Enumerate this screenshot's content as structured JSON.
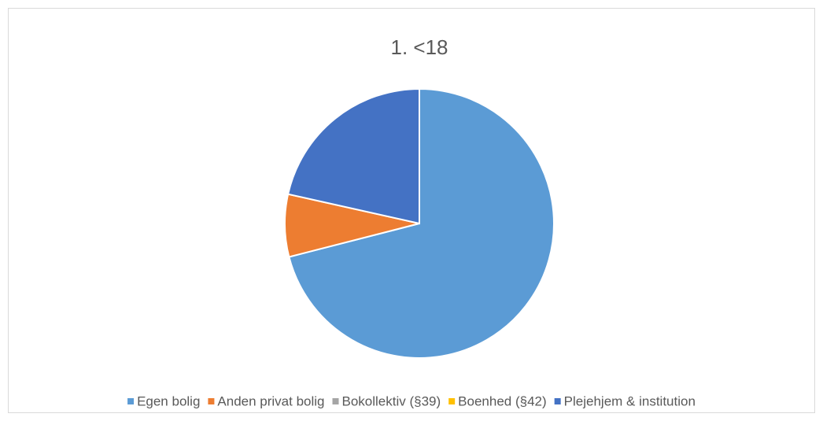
{
  "chart_data": {
    "type": "pie",
    "title": "1. <18",
    "categories": [
      "Egen bolig",
      "Anden privat bolig",
      "Bokollektiv (§39)",
      "Boenhed (§42)",
      "Plejehjem & institution"
    ],
    "values": [
      71,
      7.5,
      0,
      0,
      21.5
    ],
    "colors": [
      "#5b9bd5",
      "#ed7d31",
      "#a5a5a5",
      "#ffc000",
      "#4472c4"
    ],
    "legend": "bottom"
  }
}
